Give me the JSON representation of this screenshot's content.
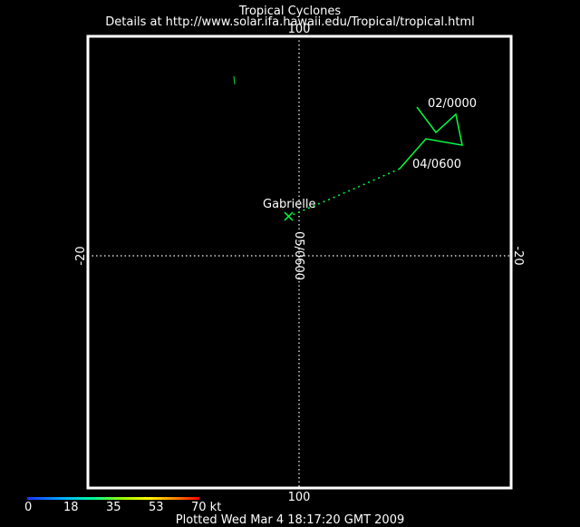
{
  "header": {
    "title": "Tropical Cyclones",
    "subtitle": "Details at http://www.solar.ifa.hawaii.edu/Tropical/tropical.html"
  },
  "axes": {
    "top_label": "100",
    "bottom_label": "100",
    "left_label": "-20",
    "right_label": "-20",
    "center_vertical_label": "05/0600"
  },
  "storm": {
    "name": "Gabrielle",
    "labels": [
      "02/0000",
      "04/0600"
    ],
    "track_color": "#00ff40"
  },
  "scale": {
    "ticks": [
      "0",
      "18",
      "35",
      "53",
      "70 kt"
    ]
  },
  "footer": {
    "plotted": "Plotted Wed Mar 4 18:17:20 GMT 2009"
  },
  "colors": {
    "background": "#000000",
    "frame": "#ffffff",
    "track": "#00ff40"
  }
}
